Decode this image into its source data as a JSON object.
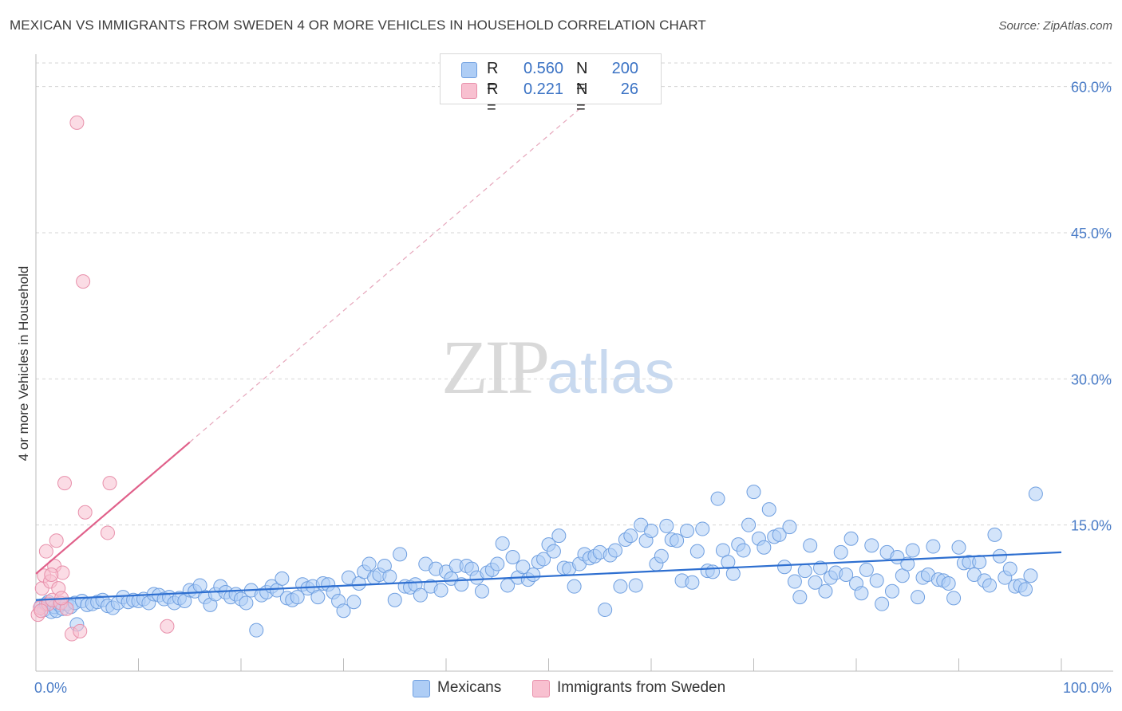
{
  "title": "MEXICAN VS IMMIGRANTS FROM SWEDEN 4 OR MORE VEHICLES IN HOUSEHOLD CORRELATION CHART",
  "source": "Source: ZipAtlas.com",
  "watermark": {
    "zip": "ZIP",
    "atlas": "atlas"
  },
  "legend": {
    "rows": [
      {
        "r_label": "R =",
        "r_value": "0.560",
        "n_label": "N =",
        "n_value": "200",
        "color": "#aecdf5"
      },
      {
        "r_label": "R =",
        "r_value": "0.221",
        "n_label": "N =",
        "n_value": "26",
        "color": "#f8c0d0"
      }
    ]
  },
  "bottom_legend": [
    {
      "label": "Mexicans",
      "color": "#aecdf5"
    },
    {
      "label": "Immigrants from Sweden",
      "color": "#f8c0d0"
    }
  ],
  "chart_data": {
    "type": "scatter",
    "title": "MEXICAN VS IMMIGRANTS FROM SWEDEN 4 OR MORE VEHICLES IN HOUSEHOLD CORRELATION CHART",
    "xlabel": "",
    "ylabel": "4 or more Vehicles in Household",
    "xlim": [
      0,
      100
    ],
    "ylim": [
      0,
      63
    ],
    "x_tick_labels": [
      "0.0%",
      "100.0%"
    ],
    "y_ticks": [
      15,
      30,
      45,
      60
    ],
    "y_tick_labels": [
      "15.0%",
      "30.0%",
      "45.0%",
      "60.0%"
    ],
    "grid": "horizontal dashed",
    "colors": {
      "mexicans_fill": "#aecdf5",
      "mexicans_stroke": "#6f9fe0",
      "mexicans_line": "#2e6fd0",
      "sweden_fill": "#f8c0d0",
      "sweden_stroke": "#e890ab",
      "sweden_line": "#e0608a"
    },
    "series": [
      {
        "name": "Mexicans",
        "trend": {
          "x": [
            0,
            100
          ],
          "y": [
            7.3,
            12.2
          ]
        },
        "points": [
          [
            0.5,
            6.7
          ],
          [
            0.8,
            6.3
          ],
          [
            1.0,
            6.9
          ],
          [
            1.2,
            7.1
          ],
          [
            1.5,
            6.1
          ],
          [
            1.8,
            6.6
          ],
          [
            2.0,
            6.2
          ],
          [
            2.3,
            6.8
          ],
          [
            2.6,
            6.4
          ],
          [
            3.0,
            6.9
          ],
          [
            3.4,
            6.6
          ],
          [
            3.8,
            7.0
          ],
          [
            4.0,
            4.8
          ],
          [
            4.5,
            7.2
          ],
          [
            5.0,
            6.8
          ],
          [
            5.5,
            6.9
          ],
          [
            6.0,
            7.1
          ],
          [
            6.5,
            7.3
          ],
          [
            7.0,
            6.7
          ],
          [
            7.5,
            6.5
          ],
          [
            8.0,
            7.0
          ],
          [
            8.5,
            7.6
          ],
          [
            9.0,
            7.1
          ],
          [
            9.5,
            7.3
          ],
          [
            10.0,
            7.2
          ],
          [
            10.5,
            7.4
          ],
          [
            11.0,
            7.0
          ],
          [
            11.5,
            7.9
          ],
          [
            12.0,
            7.8
          ],
          [
            12.5,
            7.4
          ],
          [
            13.0,
            7.6
          ],
          [
            13.5,
            7.0
          ],
          [
            14.0,
            7.5
          ],
          [
            14.5,
            7.2
          ],
          [
            15.0,
            8.3
          ],
          [
            15.5,
            8.2
          ],
          [
            16.0,
            8.8
          ],
          [
            16.5,
            7.6
          ],
          [
            17.0,
            6.8
          ],
          [
            17.5,
            7.9
          ],
          [
            18.0,
            8.7
          ],
          [
            18.5,
            8.1
          ],
          [
            19.0,
            7.6
          ],
          [
            19.5,
            7.9
          ],
          [
            20.0,
            7.4
          ],
          [
            20.5,
            7.0
          ],
          [
            21.0,
            8.3
          ],
          [
            21.5,
            4.2
          ],
          [
            22.0,
            7.8
          ],
          [
            22.5,
            8.1
          ],
          [
            23.0,
            8.7
          ],
          [
            23.5,
            8.3
          ],
          [
            24.0,
            9.5
          ],
          [
            24.5,
            7.5
          ],
          [
            25.0,
            7.3
          ],
          [
            25.5,
            7.6
          ],
          [
            26.0,
            8.9
          ],
          [
            26.5,
            8.5
          ],
          [
            27.0,
            8.7
          ],
          [
            27.5,
            7.6
          ],
          [
            28.0,
            9.0
          ],
          [
            28.5,
            8.9
          ],
          [
            29.0,
            8.1
          ],
          [
            29.5,
            7.2
          ],
          [
            30.0,
            6.2
          ],
          [
            30.5,
            9.6
          ],
          [
            31.0,
            7.1
          ],
          [
            31.5,
            9.0
          ],
          [
            32.0,
            10.2
          ],
          [
            32.5,
            11.0
          ],
          [
            33.0,
            9.6
          ],
          [
            33.5,
            9.9
          ],
          [
            34.0,
            10.8
          ],
          [
            34.5,
            9.7
          ],
          [
            35.0,
            7.3
          ],
          [
            35.5,
            12.0
          ],
          [
            36.0,
            8.7
          ],
          [
            36.5,
            8.6
          ],
          [
            37.0,
            8.9
          ],
          [
            37.5,
            7.8
          ],
          [
            38.0,
            11.0
          ],
          [
            38.5,
            8.7
          ],
          [
            39.0,
            10.5
          ],
          [
            39.5,
            8.3
          ],
          [
            40.0,
            10.2
          ],
          [
            40.5,
            9.5
          ],
          [
            41.0,
            10.8
          ],
          [
            41.5,
            8.9
          ],
          [
            42.0,
            10.8
          ],
          [
            42.5,
            10.5
          ],
          [
            43.0,
            9.6
          ],
          [
            43.5,
            8.2
          ],
          [
            44.0,
            10.1
          ],
          [
            44.5,
            10.4
          ],
          [
            45.0,
            11.0
          ],
          [
            45.5,
            13.1
          ],
          [
            46.0,
            8.8
          ],
          [
            46.5,
            11.7
          ],
          [
            47.0,
            9.6
          ],
          [
            47.5,
            10.7
          ],
          [
            48.0,
            9.4
          ],
          [
            48.5,
            9.9
          ],
          [
            49.0,
            11.2
          ],
          [
            49.5,
            11.5
          ],
          [
            50.0,
            13.0
          ],
          [
            50.5,
            12.3
          ],
          [
            51.0,
            13.9
          ],
          [
            51.5,
            10.6
          ],
          [
            52.0,
            10.5
          ],
          [
            52.5,
            8.7
          ],
          [
            53.0,
            11.0
          ],
          [
            53.5,
            12.0
          ],
          [
            54.0,
            11.6
          ],
          [
            54.5,
            11.8
          ],
          [
            55.0,
            12.2
          ],
          [
            55.5,
            6.3
          ],
          [
            56.0,
            11.9
          ],
          [
            56.5,
            12.4
          ],
          [
            57.0,
            8.7
          ],
          [
            57.5,
            13.5
          ],
          [
            58.0,
            13.9
          ],
          [
            58.5,
            8.8
          ],
          [
            59.0,
            15.0
          ],
          [
            59.5,
            13.4
          ],
          [
            60.0,
            14.4
          ],
          [
            60.5,
            11.0
          ],
          [
            61.0,
            11.8
          ],
          [
            61.5,
            14.9
          ],
          [
            62.0,
            13.5
          ],
          [
            62.5,
            13.4
          ],
          [
            63.0,
            9.3
          ],
          [
            63.5,
            14.4
          ],
          [
            64.0,
            9.1
          ],
          [
            64.5,
            12.3
          ],
          [
            65.0,
            14.6
          ],
          [
            65.5,
            10.3
          ],
          [
            66.0,
            10.2
          ],
          [
            66.5,
            17.7
          ],
          [
            67.0,
            12.4
          ],
          [
            67.5,
            11.2
          ],
          [
            68.0,
            10.0
          ],
          [
            68.5,
            13.0
          ],
          [
            69.0,
            12.4
          ],
          [
            69.5,
            15.0
          ],
          [
            70.0,
            18.4
          ],
          [
            70.5,
            13.6
          ],
          [
            71.0,
            12.7
          ],
          [
            71.5,
            16.6
          ],
          [
            72.0,
            13.8
          ],
          [
            72.5,
            14.0
          ],
          [
            73.0,
            10.7
          ],
          [
            73.5,
            14.8
          ],
          [
            74.0,
            9.2
          ],
          [
            74.5,
            7.6
          ],
          [
            75.0,
            10.3
          ],
          [
            75.5,
            12.9
          ],
          [
            76.0,
            9.1
          ],
          [
            76.5,
            10.6
          ],
          [
            77.0,
            8.2
          ],
          [
            77.5,
            9.6
          ],
          [
            78.0,
            10.1
          ],
          [
            78.5,
            12.2
          ],
          [
            79.0,
            9.9
          ],
          [
            79.5,
            13.6
          ],
          [
            80.0,
            9.0
          ],
          [
            80.5,
            8.0
          ],
          [
            81.0,
            10.4
          ],
          [
            81.5,
            12.9
          ],
          [
            82.0,
            9.3
          ],
          [
            82.5,
            6.9
          ],
          [
            83.0,
            12.2
          ],
          [
            83.5,
            8.2
          ],
          [
            84.0,
            11.7
          ],
          [
            84.5,
            9.8
          ],
          [
            85.0,
            11.0
          ],
          [
            85.5,
            12.4
          ],
          [
            86.0,
            7.6
          ],
          [
            86.5,
            9.6
          ],
          [
            87.0,
            9.9
          ],
          [
            87.5,
            12.8
          ],
          [
            88.0,
            9.4
          ],
          [
            88.5,
            9.3
          ],
          [
            89.0,
            9.0
          ],
          [
            89.5,
            7.5
          ],
          [
            90.0,
            12.7
          ],
          [
            90.5,
            11.1
          ],
          [
            91.0,
            11.2
          ],
          [
            91.5,
            9.9
          ],
          [
            92.0,
            11.2
          ],
          [
            92.5,
            9.3
          ],
          [
            93.0,
            8.8
          ],
          [
            93.5,
            14.0
          ],
          [
            94.0,
            11.8
          ],
          [
            94.5,
            9.6
          ],
          [
            95.0,
            10.5
          ],
          [
            95.5,
            8.7
          ],
          [
            96.0,
            8.8
          ],
          [
            96.5,
            8.4
          ],
          [
            97.0,
            9.8
          ],
          [
            97.5,
            18.2
          ]
        ]
      },
      {
        "name": "Immigrants from Sweden",
        "trend": {
          "x": [
            0,
            15
          ],
          "y": [
            10.0,
            23.5
          ]
        },
        "trend_extension": {
          "x": [
            15,
            55
          ],
          "y": [
            23.5,
            59.5
          ]
        },
        "points": [
          [
            0.2,
            5.8
          ],
          [
            0.4,
            6.5
          ],
          [
            0.6,
            8.5
          ],
          [
            0.8,
            9.8
          ],
          [
            1.0,
            12.3
          ],
          [
            1.2,
            6.9
          ],
          [
            1.4,
            9.2
          ],
          [
            1.6,
            7.3
          ],
          [
            1.8,
            10.8
          ],
          [
            2.0,
            13.4
          ],
          [
            2.2,
            8.5
          ],
          [
            2.4,
            7.0
          ],
          [
            2.6,
            10.1
          ],
          [
            2.8,
            19.3
          ],
          [
            3.0,
            6.4
          ],
          [
            3.5,
            3.8
          ],
          [
            4.0,
            56.3
          ],
          [
            4.3,
            4.1
          ],
          [
            4.6,
            40.0
          ],
          [
            4.8,
            16.3
          ],
          [
            7.2,
            19.3
          ],
          [
            7.0,
            14.2
          ],
          [
            12.8,
            4.6
          ],
          [
            0.5,
            6.2
          ],
          [
            1.5,
            9.9
          ],
          [
            2.5,
            7.5
          ]
        ]
      }
    ]
  }
}
